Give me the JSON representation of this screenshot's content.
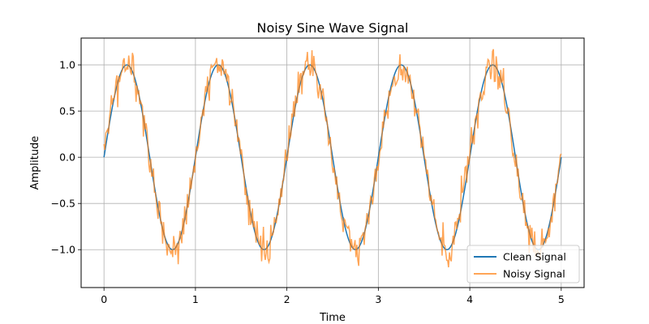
{
  "chart_data": {
    "type": "line",
    "title": "Noisy Sine Wave Signal",
    "xlabel": "Time",
    "ylabel": "Amplitude",
    "xlim": [
      -0.25,
      5.25
    ],
    "ylim": [
      -1.41,
      1.29
    ],
    "xticks": [
      0,
      1,
      2,
      3,
      4,
      5
    ],
    "xtick_labels": [
      "0",
      "1",
      "2",
      "3",
      "4",
      "5"
    ],
    "yticks": [
      -1.0,
      -0.5,
      0.0,
      0.5,
      1.0
    ],
    "ytick_labels": [
      "−1.0",
      "−0.5",
      "0.0",
      "0.5",
      "1.0"
    ],
    "grid": true,
    "legend_position": "lower-right",
    "series": [
      {
        "name": "Clean Signal",
        "color": "#1f77b4",
        "function": "sin(2*pi*x)",
        "x_range": [
          0,
          5
        ],
        "points": 500
      },
      {
        "name": "Noisy Signal",
        "color": "#ff7f0e",
        "opacity": 0.7,
        "function": "sin(2*pi*x) + noise",
        "noise_std": 0.1,
        "x_range": [
          0,
          5
        ],
        "points": 500
      }
    ]
  }
}
